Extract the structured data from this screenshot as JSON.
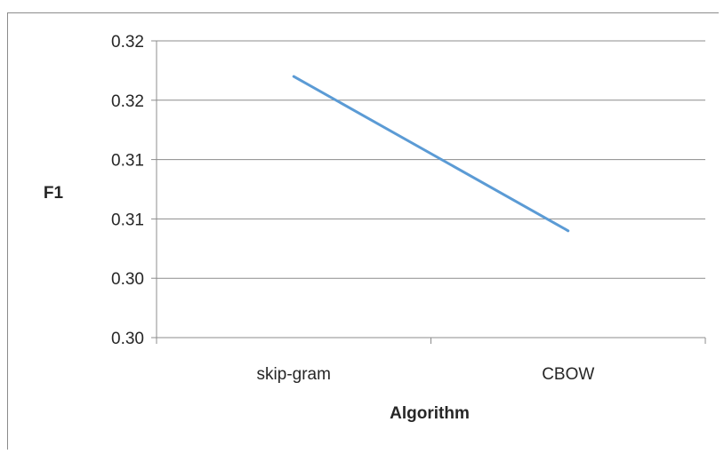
{
  "chart_data": {
    "type": "line",
    "title": "",
    "xlabel": "Algorithm",
    "ylabel": "F1",
    "categories": [
      "skip-gram",
      "CBOW"
    ],
    "series": [
      {
        "values": [
          0.3195,
          0.3065
        ]
      }
    ],
    "yticks": [
      "0.30",
      "0.30",
      "0.31",
      "0.31",
      "0.32",
      "0.32"
    ],
    "ylim": [
      0.2975,
      0.3225
    ],
    "grid": true,
    "legend": "none",
    "colors": {
      "series": "#5b9bd5",
      "grid": "#8c8c8c",
      "frame": "#8c8c8c",
      "text": "#262626"
    }
  }
}
